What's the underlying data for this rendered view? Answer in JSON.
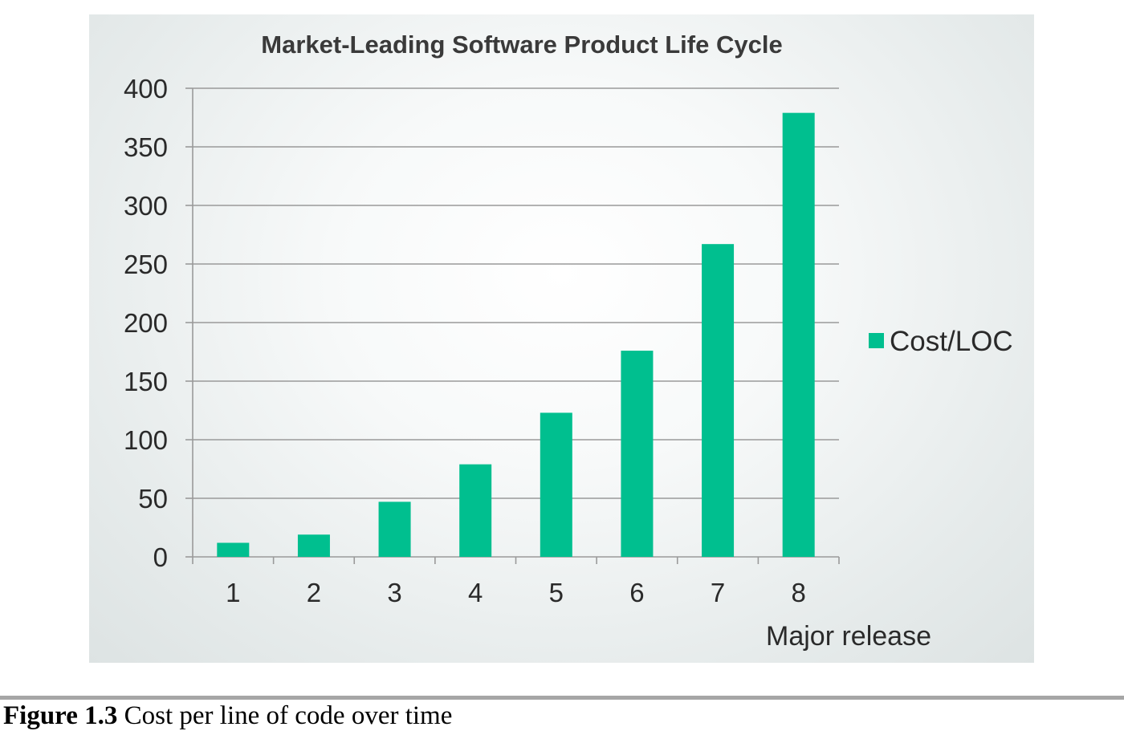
{
  "chart_data": {
    "type": "bar",
    "title": "Market-Leading Software Product Life Cycle",
    "categories": [
      "1",
      "2",
      "3",
      "4",
      "5",
      "6",
      "7",
      "8"
    ],
    "series": [
      {
        "name": "Cost/LOC",
        "values": [
          12,
          19,
          47,
          79,
          123,
          176,
          267,
          379
        ]
      }
    ],
    "xlabel": "Major release",
    "ylabel": "",
    "ylim": [
      0,
      400
    ],
    "yticks": [
      0,
      50,
      100,
      150,
      200,
      250,
      300,
      350,
      400
    ],
    "grid": true,
    "legend_position": "right",
    "bar_color": "#00bf8f"
  },
  "caption": {
    "label": "Figure 1.3",
    "text": " Cost per line of code over time"
  }
}
